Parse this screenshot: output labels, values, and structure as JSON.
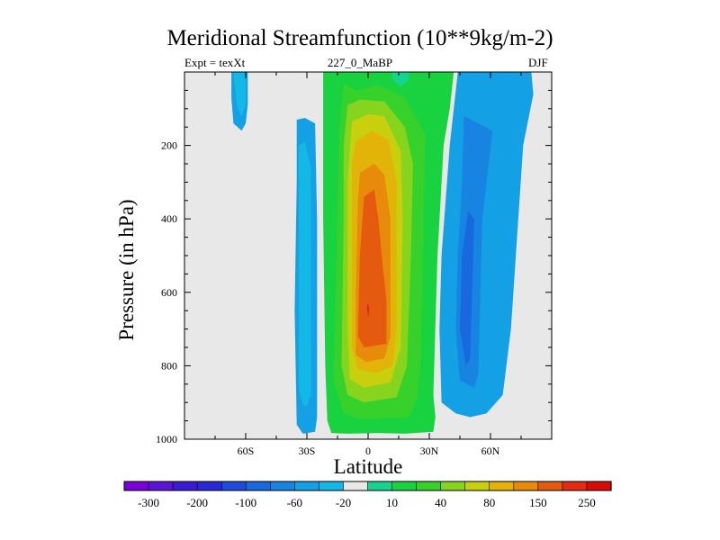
{
  "chart_data": {
    "type": "contour",
    "title": "Meridional Streamfunction (10**9kg/m-2)",
    "subtitle_left": "Expt = texXt",
    "subtitle_center": "227_0_MaBP",
    "subtitle_right": "DJF",
    "xlabel": "Latitude",
    "ylabel": "Pressure (in hPa)",
    "xlim": [
      -90,
      90
    ],
    "ylim": [
      1000,
      0
    ],
    "x_ticks": [
      {
        "value": -60,
        "label": "60S"
      },
      {
        "value": -30,
        "label": "30S"
      },
      {
        "value": 0,
        "label": "0"
      },
      {
        "value": 30,
        "label": "30N"
      },
      {
        "value": 60,
        "label": "60N"
      }
    ],
    "y_ticks": [
      {
        "value": 200,
        "label": "200"
      },
      {
        "value": 400,
        "label": "400"
      },
      {
        "value": 600,
        "label": "600"
      },
      {
        "value": 800,
        "label": "800"
      },
      {
        "value": 1000,
        "label": "1000"
      }
    ],
    "background_color": "#e8e8e8",
    "levels": [
      {
        "label": "-300",
        "color": "#7a00dc"
      },
      {
        "label": "",
        "color": "#5a14d6"
      },
      {
        "label": "-200",
        "color": "#3a1ad2"
      },
      {
        "label": "",
        "color": "#2828d8"
      },
      {
        "label": "-100",
        "color": "#1f4ade"
      },
      {
        "label": "",
        "color": "#1868e0"
      },
      {
        "label": "-60",
        "color": "#1884e2"
      },
      {
        "label": "",
        "color": "#14a0e4"
      },
      {
        "label": "-20",
        "color": "#14b8e6"
      },
      {
        "label": "",
        "color": "#e8e8e8"
      },
      {
        "label": "10",
        "color": "#16d490"
      },
      {
        "label": "",
        "color": "#19d240"
      },
      {
        "label": "40",
        "color": "#36d12a"
      },
      {
        "label": "",
        "color": "#86d41e"
      },
      {
        "label": "80",
        "color": "#c8d00e"
      },
      {
        "label": "",
        "color": "#e2b40a"
      },
      {
        "label": "150",
        "color": "#e88a0a"
      },
      {
        "label": "",
        "color": "#e45a0e"
      },
      {
        "label": "250",
        "color": "#e32a12"
      },
      {
        "label": "",
        "color": "#d80a0a"
      }
    ],
    "regions": [
      {
        "level": 7,
        "points": [
          [
            -67,
            0
          ],
          [
            -59,
            0
          ],
          [
            -59,
            90
          ],
          [
            -60,
            140
          ],
          [
            -62,
            160
          ],
          [
            -66,
            140
          ],
          [
            -67,
            70
          ]
        ]
      },
      {
        "level": 8,
        "points": [
          [
            -66,
            0
          ],
          [
            -60,
            0
          ],
          [
            -60,
            90
          ],
          [
            -62,
            120
          ],
          [
            -64,
            100
          ],
          [
            -65,
            60
          ]
        ]
      },
      {
        "level": 7,
        "points": [
          [
            -35,
            130
          ],
          [
            -31,
            125
          ],
          [
            -26,
            140
          ],
          [
            -25,
            400
          ],
          [
            -25,
            600
          ],
          [
            -25,
            940
          ],
          [
            -26,
            980
          ],
          [
            -32,
            985
          ],
          [
            -35,
            960
          ],
          [
            -36,
            650
          ],
          [
            -35,
            300
          ]
        ]
      },
      {
        "level": 8,
        "points": [
          [
            -34,
            200
          ],
          [
            -31,
            190
          ],
          [
            -28,
            260
          ],
          [
            -28,
            600
          ],
          [
            -28,
            880
          ],
          [
            -30,
            910
          ],
          [
            -32,
            905
          ],
          [
            -34,
            860
          ],
          [
            -34,
            400
          ]
        ]
      },
      {
        "level": 7,
        "points": [
          [
            44,
            0
          ],
          [
            80,
            0
          ],
          [
            81,
            60
          ],
          [
            76,
            200
          ],
          [
            73,
            450
          ],
          [
            70,
            700
          ],
          [
            66,
            880
          ],
          [
            58,
            930
          ],
          [
            50,
            940
          ],
          [
            43,
            930
          ],
          [
            36,
            900
          ],
          [
            35,
            700
          ],
          [
            36,
            500
          ],
          [
            40,
            200
          ]
        ]
      },
      {
        "level": 6,
        "points": [
          [
            47,
            120
          ],
          [
            61,
            160
          ],
          [
            56,
            400
          ],
          [
            55,
            600
          ],
          [
            54,
            820
          ],
          [
            52,
            860
          ],
          [
            45,
            840
          ],
          [
            43,
            700
          ],
          [
            44,
            500
          ],
          [
            46,
            300
          ]
        ]
      },
      {
        "level": 5,
        "points": [
          [
            49,
            380
          ],
          [
            52,
            400
          ],
          [
            51,
            600
          ],
          [
            50,
            780
          ],
          [
            48,
            800
          ],
          [
            45,
            700
          ],
          [
            46,
            500
          ]
        ]
      },
      {
        "level": 11,
        "points": [
          [
            -22,
            0
          ],
          [
            42,
            0
          ],
          [
            40,
            100
          ],
          [
            37,
            200
          ],
          [
            34,
            500
          ],
          [
            32,
            880
          ],
          [
            33,
            940
          ],
          [
            32,
            980
          ],
          [
            18,
            985
          ],
          [
            5,
            983
          ],
          [
            -10,
            985
          ],
          [
            -18,
            983
          ],
          [
            -20,
            950
          ],
          [
            -21,
            800
          ],
          [
            -22,
            400
          ]
        ]
      },
      {
        "level": 10,
        "points": [
          [
            12,
            0
          ],
          [
            20,
            0
          ],
          [
            20,
            20
          ],
          [
            16,
            40
          ],
          [
            12,
            20
          ]
        ]
      },
      {
        "level": 12,
        "points": [
          [
            -12,
            30
          ],
          [
            -6,
            50
          ],
          [
            5,
            35
          ],
          [
            18,
            70
          ],
          [
            28,
            170
          ],
          [
            27,
            450
          ],
          [
            26,
            780
          ],
          [
            24,
            890
          ],
          [
            20,
            940
          ],
          [
            -4,
            945
          ],
          [
            -12,
            930
          ],
          [
            -17,
            840
          ],
          [
            -15,
            400
          ],
          [
            -14,
            150
          ]
        ]
      },
      {
        "level": 13,
        "points": [
          [
            -10,
            90
          ],
          [
            -4,
            75
          ],
          [
            8,
            80
          ],
          [
            18,
            150
          ],
          [
            22,
            250
          ],
          [
            21,
            500
          ],
          [
            19,
            800
          ],
          [
            14,
            885
          ],
          [
            -2,
            900
          ],
          [
            -10,
            880
          ],
          [
            -13,
            800
          ],
          [
            -12,
            400
          ],
          [
            -12,
            200
          ]
        ]
      },
      {
        "level": 14,
        "points": [
          [
            -8,
            135
          ],
          [
            0,
            115
          ],
          [
            8,
            120
          ],
          [
            16,
            215
          ],
          [
            17,
            400
          ],
          [
            16,
            750
          ],
          [
            11,
            845
          ],
          [
            -2,
            860
          ],
          [
            -9,
            835
          ],
          [
            -10,
            700
          ],
          [
            -10,
            300
          ]
        ]
      },
      {
        "level": 15,
        "points": [
          [
            -6,
            190
          ],
          [
            2,
            160
          ],
          [
            10,
            185
          ],
          [
            14,
            300
          ],
          [
            14,
            700
          ],
          [
            12,
            800
          ],
          [
            4,
            820
          ],
          [
            -5,
            810
          ],
          [
            -8,
            750
          ],
          [
            -8,
            400
          ],
          [
            -8,
            250
          ]
        ]
      },
      {
        "level": 16,
        "points": [
          [
            -4,
            275
          ],
          [
            3,
            250
          ],
          [
            8,
            280
          ],
          [
            11,
            400
          ],
          [
            11,
            720
          ],
          [
            8,
            780
          ],
          [
            -1,
            790
          ],
          [
            -6,
            770
          ],
          [
            -6,
            600
          ],
          [
            -5,
            350
          ]
        ]
      },
      {
        "level": 17,
        "points": [
          [
            -2,
            340
          ],
          [
            3,
            320
          ],
          [
            5,
            400
          ],
          [
            7,
            520
          ],
          [
            9,
            620
          ],
          [
            9,
            740
          ],
          [
            -2,
            750
          ],
          [
            -5,
            720
          ],
          [
            -4,
            500
          ]
        ]
      },
      {
        "level": 18,
        "points": [
          [
            -0.6,
            640
          ],
          [
            0,
            630
          ],
          [
            0.6,
            645
          ],
          [
            0,
            670
          ]
        ]
      }
    ]
  }
}
